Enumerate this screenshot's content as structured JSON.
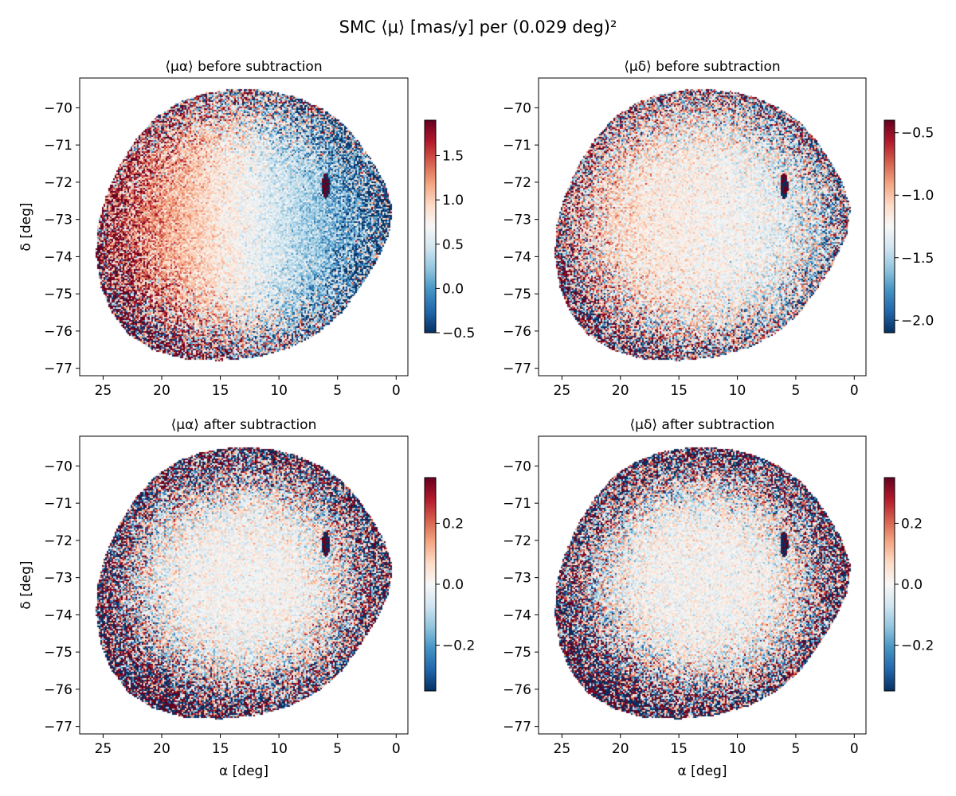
{
  "figure": {
    "title": "SMC ⟨μ⟩ [mas/y] per (0.029 deg)²"
  },
  "chart_data": [
    {
      "type": "heatmap",
      "title": "⟨μα⟩ before subtraction",
      "xlabel": "",
      "ylabel": "δ [deg]",
      "xlim": [
        27,
        -1
      ],
      "ylim": [
        -77.2,
        -69.2
      ],
      "xticks": [
        "25",
        "20",
        "15",
        "10",
        "5",
        "0"
      ],
      "yticks": [
        "-70",
        "-71",
        "-72",
        "-73",
        "-74",
        "-75",
        "-76",
        "-77"
      ],
      "colormap": "RdBu_r",
      "color_range": [
        -0.5,
        1.9
      ],
      "colorbar_ticks": [
        "-0.5",
        "0.0",
        "0.5",
        "1.0",
        "1.5"
      ],
      "field": "gradient",
      "base": 0.7,
      "grad": 0.07,
      "noise": 0.14,
      "edge_noise": 1.1
    },
    {
      "type": "heatmap",
      "title": "⟨μδ⟩ before subtraction",
      "xlabel": "",
      "ylabel": "",
      "xlim": [
        27,
        -1
      ],
      "ylim": [
        -77.2,
        -69.2
      ],
      "xticks": [
        "25",
        "20",
        "15",
        "10",
        "5",
        "0"
      ],
      "yticks": [
        "-70",
        "-71",
        "-72",
        "-73",
        "-74",
        "-75",
        "-76",
        "-77"
      ],
      "colormap": "RdBu_r",
      "color_range": [
        -2.1,
        -0.4
      ],
      "colorbar_ticks": [
        "-2.0",
        "-1.5",
        "-1.0",
        "-0.5"
      ],
      "field": "gradient",
      "base": -1.22,
      "grad": 0.012,
      "noise": 0.1,
      "edge_noise": 0.75
    },
    {
      "type": "heatmap",
      "title": "⟨μα⟩ after subtraction",
      "xlabel": "α [deg]",
      "ylabel": "δ [deg]",
      "xlim": [
        27,
        -1
      ],
      "ylim": [
        -77.2,
        -69.2
      ],
      "xticks": [
        "25",
        "20",
        "15",
        "10",
        "5",
        "0"
      ],
      "yticks": [
        "-70",
        "-71",
        "-72",
        "-73",
        "-74",
        "-75",
        "-76",
        "-77"
      ],
      "colormap": "RdBu_r",
      "color_range": [
        -0.35,
        0.35
      ],
      "colorbar_ticks": [
        "-0.2",
        "0.0",
        "0.2"
      ],
      "field": "residual",
      "base": 0,
      "grad": 0,
      "noise": 0.04,
      "edge_noise": 0.55
    },
    {
      "type": "heatmap",
      "title": "⟨μδ⟩ after subtraction",
      "xlabel": "α [deg]",
      "ylabel": "",
      "xlim": [
        27,
        -1
      ],
      "ylim": [
        -77.2,
        -69.2
      ],
      "xticks": [
        "25",
        "20",
        "15",
        "10",
        "5",
        "0"
      ],
      "yticks": [
        "-70",
        "-71",
        "-72",
        "-73",
        "-74",
        "-75",
        "-76",
        "-77"
      ],
      "colormap": "RdBu_r",
      "color_range": [
        -0.35,
        0.35
      ],
      "colorbar_ticks": [
        "-0.2",
        "0.0",
        "0.2"
      ],
      "field": "residual",
      "base": 0,
      "grad": 0,
      "noise": 0.04,
      "edge_noise": 0.55
    }
  ]
}
